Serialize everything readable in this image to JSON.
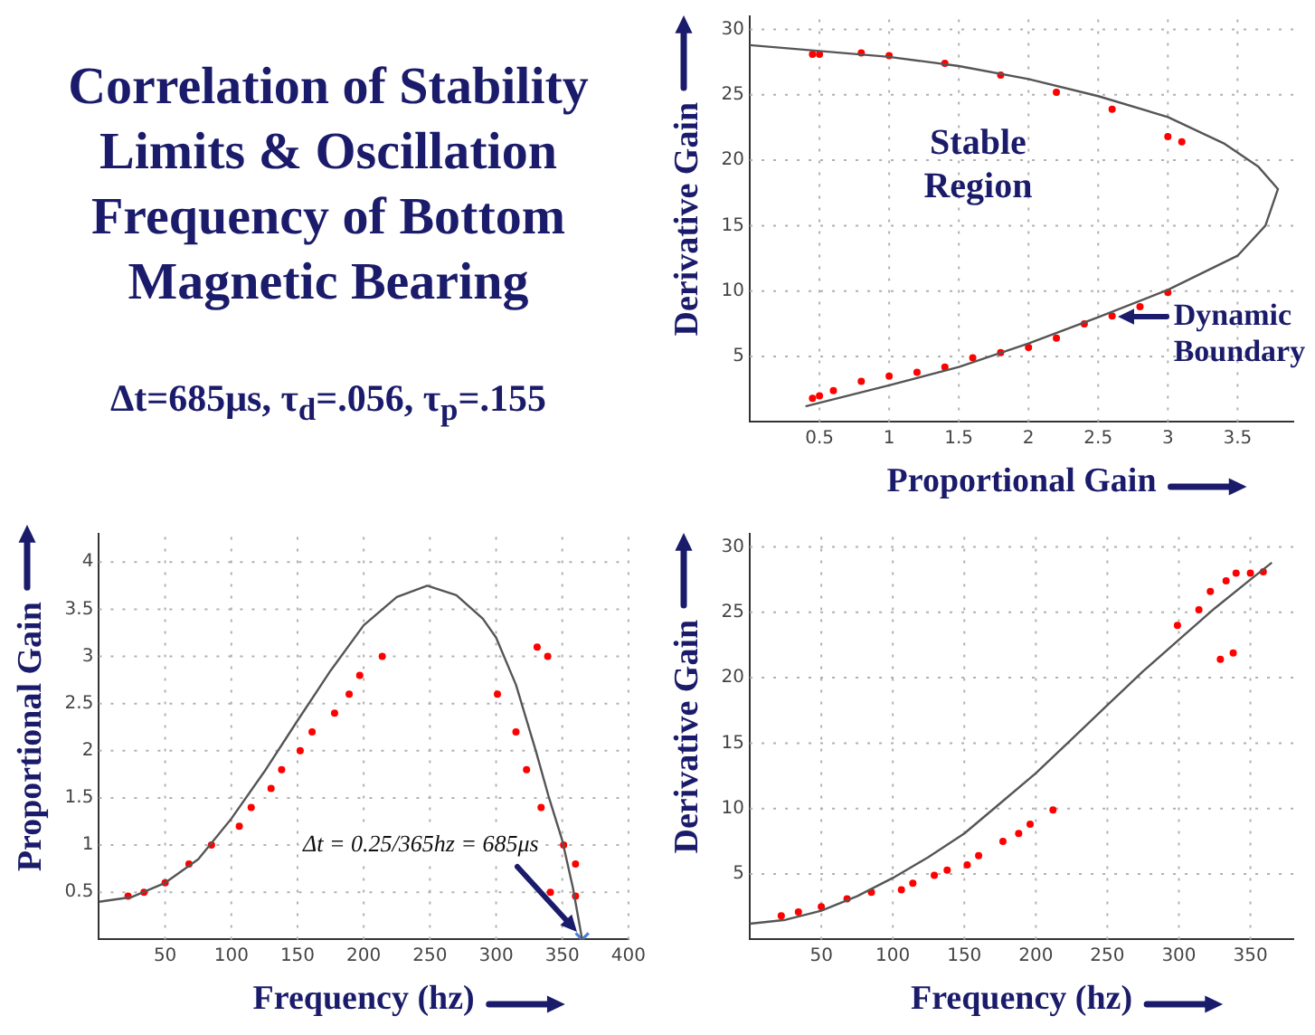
{
  "chart_data": [
    {
      "type": "other",
      "title": "Correlation of Stability Limits & Oscillation Frequency of Bottom Magnetic Bearing",
      "subtitle": "Δt=685μs, τ$_{d}$=.056, τ$_{p}$=.155"
    },
    {
      "type": "scatter",
      "xlabel": "Proportional Gain",
      "ylabel": "Derivative Gain",
      "xlim": [
        0,
        3.9
      ],
      "ylim": [
        0,
        31
      ],
      "xticks": [
        0.5,
        1,
        1.5,
        2,
        2.5,
        3,
        3.5
      ],
      "yticks": [
        5,
        10,
        15,
        20,
        25,
        30
      ],
      "grid": true,
      "legend": false,
      "marker": "circle",
      "annotations": [
        "Stable Region",
        {
          "text": "Dynamic Boundary",
          "x": 2.6,
          "y": 8
        }
      ],
      "series": [
        {
          "type": "line",
          "marker": "none",
          "color": "#555555",
          "x": [
            0,
            1,
            1.5,
            2,
            2.5,
            3,
            3.4,
            3.65,
            3.79,
            3.7,
            3.5,
            3,
            2.5,
            2,
            1.5,
            1,
            0.4
          ],
          "values": [
            28.8,
            27.9,
            27.2,
            26.2,
            24.9,
            23.3,
            21.3,
            19.5,
            17.8,
            15,
            12.7,
            10.1,
            8,
            6,
            4.2,
            2.8,
            1.2
          ]
        },
        {
          "type": "scatter",
          "color": "#ff0000",
          "x": [
            0.45,
            0.5,
            0.8,
            1,
            1.4,
            1.8,
            2.2,
            2.6,
            3,
            3.1,
            0.45,
            0.5,
            0.6,
            0.8,
            1,
            1.2,
            1.4,
            1.6,
            1.8,
            2,
            2.2,
            2.4,
            2.6,
            2.8,
            3
          ],
          "values": [
            28.1,
            28.1,
            28.2,
            28,
            27.4,
            26.5,
            25.2,
            23.9,
            21.8,
            21.4,
            1.8,
            2,
            2.4,
            3.1,
            3.5,
            3.8,
            4.2,
            4.9,
            5.3,
            5.7,
            6.4,
            7.5,
            8.1,
            8.8,
            9.9
          ]
        }
      ]
    },
    {
      "type": "scatter",
      "xlabel": "Frequency (hz)",
      "ylabel": "Proportional Gain",
      "xlim": [
        0,
        400
      ],
      "ylim": [
        0,
        4.3
      ],
      "xticks": [
        50,
        100,
        150,
        200,
        250,
        300,
        350,
        400
      ],
      "yticks": [
        0.5,
        1,
        1.5,
        2,
        2.5,
        3,
        3.5,
        4
      ],
      "grid": true,
      "legend": false,
      "marker": "circle",
      "annotations": [
        "Δt = 0.25/365hz = 685μs"
      ],
      "series": [
        {
          "type": "line",
          "marker": "none",
          "color": "#555555",
          "x": [
            0,
            25,
            50,
            75,
            100,
            125,
            150,
            175,
            200,
            225,
            248,
            270,
            290,
            300,
            315,
            330,
            340,
            350,
            358,
            365
          ],
          "values": [
            0.4,
            0.45,
            0.6,
            0.85,
            1.28,
            1.78,
            2.32,
            2.85,
            3.33,
            3.63,
            3.75,
            3.65,
            3.4,
            3.2,
            2.7,
            2,
            1.5,
            1.05,
            0.55,
            0
          ]
        },
        {
          "type": "scatter",
          "color": "#ff0000",
          "x": [
            22,
            34,
            50,
            68,
            85,
            106,
            115,
            130,
            138,
            152,
            161,
            178,
            189,
            197,
            214,
            301,
            315,
            323,
            334,
            331,
            339,
            351,
            360,
            360,
            341
          ],
          "values": [
            0.46,
            0.5,
            0.6,
            0.8,
            1,
            1.2,
            1.4,
            1.6,
            1.8,
            2,
            2.2,
            2.4,
            2.6,
            2.8,
            3,
            2.6,
            2.2,
            1.8,
            1.4,
            3.1,
            3,
            1,
            0.8,
            0.46,
            0.5
          ]
        },
        {
          "type": "scatter",
          "marker": "cross",
          "color": "#4a7fd4",
          "x": [
            365
          ],
          "values": [
            0
          ]
        }
      ]
    },
    {
      "type": "scatter",
      "xlabel": "Frequency (hz)",
      "ylabel": "Derivative Gain",
      "xlim": [
        0,
        380
      ],
      "ylim": [
        0,
        31
      ],
      "xticks": [
        50,
        100,
        150,
        200,
        250,
        300,
        350
      ],
      "yticks": [
        5,
        10,
        15,
        20,
        25,
        30
      ],
      "grid": true,
      "legend": false,
      "marker": "circle",
      "series": [
        {
          "type": "line",
          "marker": "none",
          "color": "#555555",
          "x": [
            0,
            25,
            50,
            75,
            100,
            125,
            150,
            175,
            200,
            225,
            250,
            275,
            300,
            325,
            350,
            365
          ],
          "values": [
            1.2,
            1.5,
            2.2,
            3.3,
            4.7,
            6.3,
            8.1,
            10.4,
            12.7,
            15.3,
            17.9,
            20.5,
            22.9,
            25.3,
            27.5,
            28.8
          ]
        },
        {
          "type": "scatter",
          "color": "#ff0000",
          "x": [
            22,
            34,
            50,
            68,
            85,
            106,
            114,
            129,
            138,
            152,
            160,
            177,
            188,
            196,
            212,
            299,
            314,
            322,
            333,
            340,
            350,
            359,
            329,
            338
          ],
          "values": [
            1.8,
            2.1,
            2.5,
            3.1,
            3.6,
            3.8,
            4.3,
            4.9,
            5.3,
            5.7,
            6.4,
            7.5,
            8.1,
            8.8,
            9.9,
            24,
            25.2,
            26.6,
            27.4,
            28,
            28,
            28.1,
            21.4,
            21.9
          ]
        }
      ]
    }
  ]
}
